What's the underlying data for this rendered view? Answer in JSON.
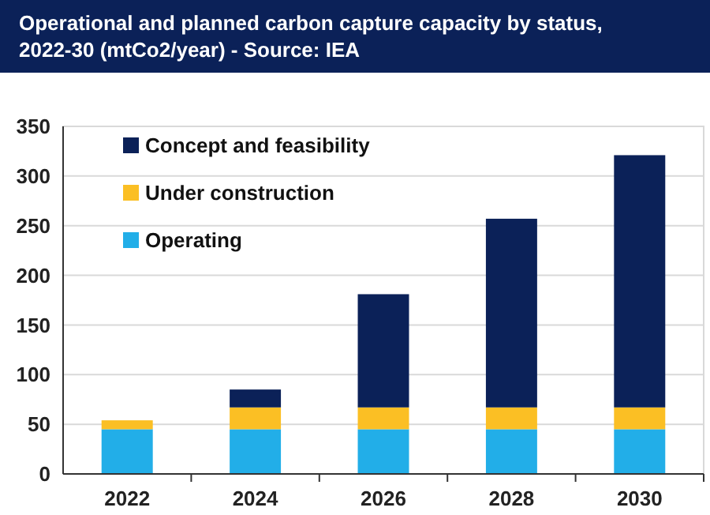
{
  "chart_data": {
    "type": "bar",
    "title": "Operational and planned carbon capture capacity by status, 2022-30 (mtCo2/year) - Source: IEA",
    "categories": [
      "2022",
      "2024",
      "2026",
      "2028",
      "2030"
    ],
    "stacked": true,
    "series": [
      {
        "name": "Operating",
        "color": "#22aee8",
        "values": [
          45,
          45,
          45,
          45,
          45
        ]
      },
      {
        "name": "Under construction",
        "color": "#fbbf24",
        "values": [
          9,
          22,
          22,
          22,
          22
        ]
      },
      {
        "name": "Concept and feasibility",
        "color": "#0b2158",
        "values": [
          null,
          18,
          114,
          190,
          254
        ]
      }
    ],
    "ylim": [
      0,
      350
    ],
    "yticks": [
      0,
      50,
      100,
      150,
      200,
      250,
      300,
      350
    ],
    "grid": "y",
    "legend": "top left"
  }
}
